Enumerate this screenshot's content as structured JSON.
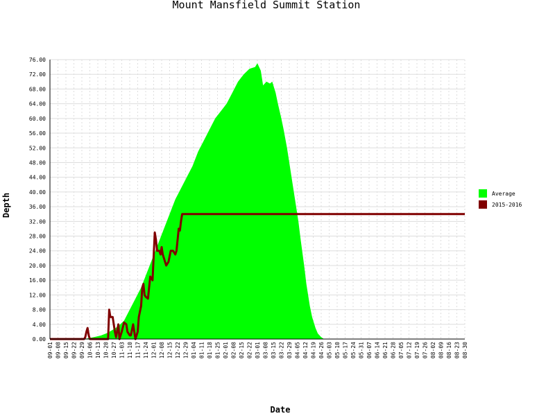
{
  "chart_data": {
    "type": "area",
    "title": "Mount Mansfield Summit Station",
    "xlabel": "Date",
    "ylabel": "Depth",
    "ylim": [
      0,
      76
    ],
    "yticks": [
      "0.00",
      "4.00",
      "8.00",
      "12.00",
      "16.00",
      "20.00",
      "24.00",
      "28.00",
      "32.00",
      "36.00",
      "40.00",
      "44.00",
      "48.00",
      "52.00",
      "56.00",
      "60.00",
      "64.00",
      "68.00",
      "72.00",
      "76.00"
    ],
    "xticks": [
      "09-01",
      "09-08",
      "09-15",
      "09-22",
      "09-29",
      "10-06",
      "10-13",
      "10-20",
      "10-27",
      "11-03",
      "11-10",
      "11-17",
      "11-24",
      "12-01",
      "12-08",
      "12-15",
      "12-22",
      "12-29",
      "01-04",
      "01-11",
      "01-18",
      "01-25",
      "02-01",
      "02-08",
      "02-15",
      "02-22",
      "03-01",
      "03-08",
      "03-15",
      "03-22",
      "03-29",
      "04-05",
      "04-12",
      "04-19",
      "04-26",
      "05-03",
      "05-10",
      "05-17",
      "05-24",
      "05-31",
      "06-07",
      "06-14",
      "06-21",
      "06-28",
      "07-05",
      "07-12",
      "07-19",
      "07-26",
      "08-02",
      "08-09",
      "08-16",
      "08-23",
      "08-30"
    ],
    "grid": true,
    "legend_position": "right",
    "series": [
      {
        "name": "Average",
        "color": "#00ff00",
        "style": "area",
        "points": [
          [
            0,
            0
          ],
          [
            30,
            0
          ],
          [
            35,
            0.3
          ],
          [
            40,
            0.6
          ],
          [
            45,
            1
          ],
          [
            50,
            1.6
          ],
          [
            55,
            2.5
          ],
          [
            60,
            3.5
          ],
          [
            65,
            5
          ],
          [
            70,
            8
          ],
          [
            75,
            11
          ],
          [
            80,
            14
          ],
          [
            85,
            18
          ],
          [
            90,
            22
          ],
          [
            95,
            26
          ],
          [
            100,
            30
          ],
          [
            105,
            34
          ],
          [
            110,
            38
          ],
          [
            115,
            41
          ],
          [
            120,
            44
          ],
          [
            125,
            47
          ],
          [
            130,
            51
          ],
          [
            135,
            54
          ],
          [
            140,
            57
          ],
          [
            145,
            60
          ],
          [
            150,
            62
          ],
          [
            155,
            64
          ],
          [
            160,
            67
          ],
          [
            165,
            70
          ],
          [
            170,
            72
          ],
          [
            175,
            73.5
          ],
          [
            180,
            74
          ],
          [
            182,
            75
          ],
          [
            185,
            73
          ],
          [
            187,
            69
          ],
          [
            190,
            70
          ],
          [
            193,
            69.5
          ],
          [
            195,
            70
          ],
          [
            198,
            67
          ],
          [
            200,
            64
          ],
          [
            203,
            60
          ],
          [
            205,
            57
          ],
          [
            208,
            52
          ],
          [
            210,
            48
          ],
          [
            213,
            42
          ],
          [
            215,
            38
          ],
          [
            218,
            32
          ],
          [
            220,
            27
          ],
          [
            223,
            20
          ],
          [
            225,
            15
          ],
          [
            228,
            9
          ],
          [
            230,
            6
          ],
          [
            233,
            3
          ],
          [
            235,
            1.5
          ],
          [
            238,
            0.5
          ],
          [
            240,
            0.1
          ],
          [
            242,
            0
          ],
          [
            364,
            0
          ]
        ]
      },
      {
        "name": "2015-2016",
        "color": "#800000",
        "style": "line",
        "points": [
          [
            0,
            0
          ],
          [
            30,
            0
          ],
          [
            31,
            0.5
          ],
          [
            32,
            2
          ],
          [
            33,
            3
          ],
          [
            34,
            1
          ],
          [
            35,
            0
          ],
          [
            51,
            0
          ],
          [
            52,
            8
          ],
          [
            53,
            6
          ],
          [
            55,
            6
          ],
          [
            57,
            2
          ],
          [
            58,
            0.5
          ],
          [
            60,
            4
          ],
          [
            61,
            0
          ],
          [
            63,
            2
          ],
          [
            65,
            4.5
          ],
          [
            67,
            4
          ],
          [
            68,
            2
          ],
          [
            70,
            1
          ],
          [
            71,
            1
          ],
          [
            73,
            4
          ],
          [
            75,
            0
          ],
          [
            77,
            2
          ],
          [
            78,
            6
          ],
          [
            80,
            9
          ],
          [
            81,
            14
          ],
          [
            82,
            15
          ],
          [
            83,
            12
          ],
          [
            84,
            11.5
          ],
          [
            86,
            11
          ],
          [
            87,
            14
          ],
          [
            88,
            17
          ],
          [
            90,
            16
          ],
          [
            92,
            29
          ],
          [
            93,
            27
          ],
          [
            94,
            24
          ],
          [
            96,
            24
          ],
          [
            97,
            23
          ],
          [
            98,
            25
          ],
          [
            99,
            23
          ],
          [
            100,
            22
          ],
          [
            101,
            21
          ],
          [
            102,
            20
          ],
          [
            104,
            21
          ],
          [
            106,
            24
          ],
          [
            108,
            24
          ],
          [
            110,
            23
          ],
          [
            111,
            24
          ],
          [
            113,
            30
          ],
          [
            114,
            29.5
          ],
          [
            115,
            32
          ],
          [
            116,
            34
          ],
          [
            364,
            34
          ]
        ]
      }
    ]
  },
  "legend": {
    "items": [
      {
        "label": "Average",
        "color": "#00ff00"
      },
      {
        "label": "2015-2016",
        "color": "#800000"
      }
    ]
  }
}
